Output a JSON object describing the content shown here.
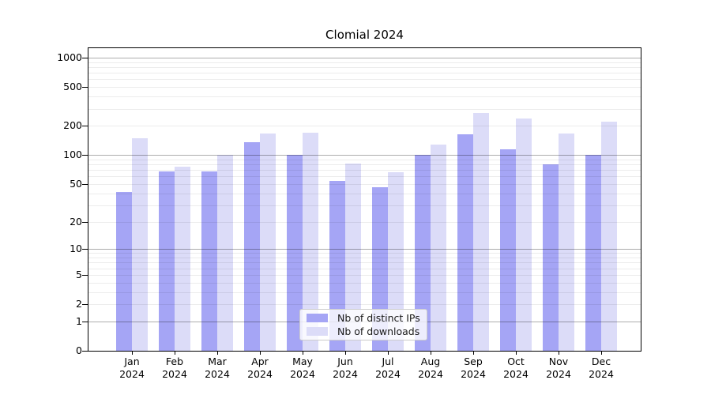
{
  "title": "Clomial 2024",
  "chart_data": {
    "type": "bar",
    "title": "Clomial 2024",
    "categories": [
      "Jan 2024",
      "Feb 2024",
      "Mar 2024",
      "Apr 2024",
      "May 2024",
      "Jun 2024",
      "Jul 2024",
      "Aug 2024",
      "Sep 2024",
      "Oct 2024",
      "Nov 2024",
      "Dec 2024"
    ],
    "series": [
      {
        "name": "Nb of distinct IPs",
        "color": "#a5a5f5",
        "values": [
          41,
          67,
          67,
          135,
          100,
          54,
          46,
          100,
          162,
          115,
          80,
          100
        ]
      },
      {
        "name": "Nb of downloads",
        "color": "#dcdcf8",
        "values": [
          148,
          75,
          100,
          166,
          169,
          81,
          66,
          127,
          270,
          237,
          168,
          220
        ]
      }
    ],
    "xlabel": "",
    "ylabel": "",
    "y_scale": "log10(value+1)",
    "y_ticks": [
      1000,
      500,
      200,
      100,
      50,
      20,
      10,
      5,
      2,
      1,
      0
    ],
    "ylim": [
      0,
      1250
    ],
    "grid": "major and minor horizontal gridlines, drawn over bars",
    "legend_position": "lower center"
  },
  "legend": {
    "item1": "Nb of distinct IPs",
    "item2": "Nb of downloads"
  },
  "colors": {
    "background": "#ffffff",
    "series_ips": "#a5a5f5",
    "series_downloads": "#dcdcf8",
    "axis": "#000000",
    "grid_major": "#b3b3b3",
    "grid_minor": "#ececec"
  }
}
